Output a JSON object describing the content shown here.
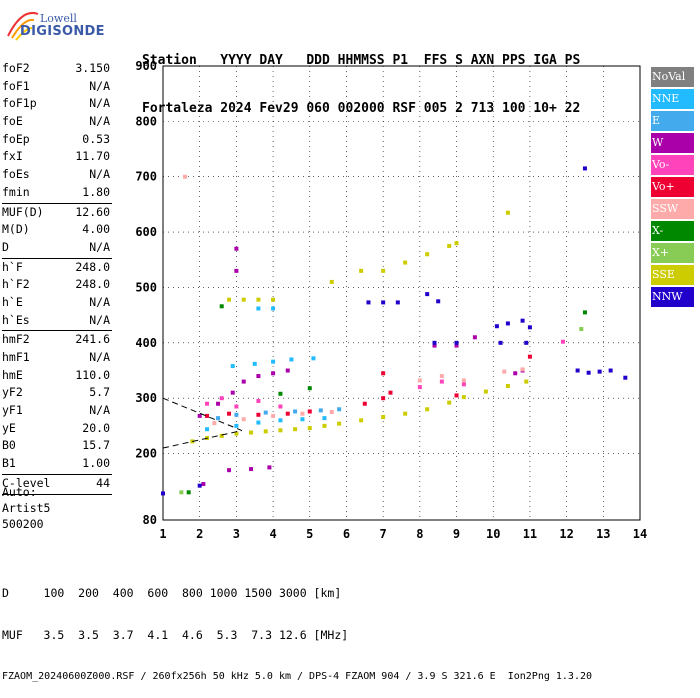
{
  "logo": {
    "top": "Lowell",
    "main": "DIGISONDE"
  },
  "header": {
    "line1": "Station   YYYY DAY   DDD HHMMSS P1  FFS S AXN PPS IGA PS",
    "line2": "Fortaleza 2024 Fev29 060 002000 RSF 005 2 713 100 10+ 22"
  },
  "params": {
    "group1": [
      {
        "k": "foF2",
        "v": "3.150"
      },
      {
        "k": "foF1",
        "v": "N/A"
      },
      {
        "k": "foF1p",
        "v": "N/A"
      },
      {
        "k": "foE",
        "v": "N/A"
      },
      {
        "k": "foEp",
        "v": "0.53"
      },
      {
        "k": "fxI",
        "v": "11.70"
      },
      {
        "k": "foEs",
        "v": "N/A"
      },
      {
        "k": "fmin",
        "v": "1.80"
      }
    ],
    "group2": [
      {
        "k": "MUF(D)",
        "v": "12.60"
      },
      {
        "k": "M(D)",
        "v": "4.00"
      },
      {
        "k": "D",
        "v": "N/A"
      }
    ],
    "group3": [
      {
        "k": "h`F",
        "v": "248.0"
      },
      {
        "k": "h`F2",
        "v": "248.0"
      },
      {
        "k": "h`E",
        "v": "N/A"
      },
      {
        "k": "h`Es",
        "v": "N/A"
      }
    ],
    "group4": [
      {
        "k": "hmF2",
        "v": "241.6"
      },
      {
        "k": "hmF1",
        "v": "N/A"
      },
      {
        "k": "hmE",
        "v": "110.0"
      },
      {
        "k": "yF2",
        "v": "5.7"
      },
      {
        "k": "yF1",
        "v": "N/A"
      },
      {
        "k": "yE",
        "v": "20.0"
      },
      {
        "k": "B0",
        "v": "15.7"
      },
      {
        "k": "B1",
        "v": "1.00"
      }
    ],
    "group5": [
      {
        "k": "C-level",
        "v": "44"
      }
    ]
  },
  "auto": {
    "l1": "Auto:",
    "l2": "Artist5",
    "l3": "500200"
  },
  "bottom": {
    "d_line": "D     100  200  400  600  800 1000 1500 3000 [km]",
    "muf_line": "MUF   3.5  3.5  3.7  4.1  4.6  5.3  7.3 12.6 [MHz]",
    "file_line": "FZAOM_20240600Z000.RSF / 260fx256h 50 kHz 5.0 km / DPS-4 FZAOM 904 / 3.9 S 321.6 E  Ion2Png 1.3.20"
  },
  "legend": [
    {
      "label": "NoVal",
      "color": "#808080"
    },
    {
      "label": "NNE",
      "color": "#22bbff"
    },
    {
      "label": "E",
      "color": "#44aaee"
    },
    {
      "label": "W",
      "color": "#aa00aa"
    },
    {
      "label": "Vo-",
      "color": "#ff44bb"
    },
    {
      "label": "Vo+",
      "color": "#ee0033"
    },
    {
      "label": "SSW",
      "color": "#ffaaaa"
    },
    {
      "label": "X-",
      "color": "#008800"
    },
    {
      "label": "X+",
      "color": "#88cc55"
    },
    {
      "label": "SSE",
      "color": "#cccc00"
    },
    {
      "label": "NNW",
      "color": "#2200cc"
    }
  ],
  "chart_data": {
    "type": "scatter",
    "xlabel": "",
    "ylabel": "",
    "xlim": [
      1,
      14
    ],
    "ylim": [
      80,
      900
    ],
    "x_ticks": [
      1,
      2,
      3,
      4,
      5,
      6,
      7,
      8,
      9,
      10,
      11,
      12,
      13,
      14
    ],
    "y_ticks": [
      80,
      200,
      300,
      400,
      500,
      600,
      700,
      800,
      900
    ],
    "grid": true,
    "legend_placement": "right",
    "series": [
      {
        "name": "SSE",
        "points": [
          [
            1.8,
            222
          ],
          [
            2.2,
            228
          ],
          [
            2.6,
            232
          ],
          [
            3.0,
            236
          ],
          [
            3.4,
            238
          ],
          [
            3.8,
            240
          ],
          [
            4.2,
            242
          ],
          [
            4.6,
            244
          ],
          [
            5.0,
            246
          ],
          [
            5.4,
            250
          ],
          [
            5.8,
            254
          ],
          [
            6.4,
            260
          ],
          [
            7.0,
            266
          ],
          [
            7.6,
            272
          ],
          [
            8.2,
            280
          ],
          [
            8.8,
            292
          ],
          [
            9.2,
            302
          ],
          [
            9.8,
            312
          ],
          [
            10.4,
            322
          ],
          [
            10.9,
            330
          ],
          [
            2.8,
            478
          ],
          [
            3.2,
            478
          ],
          [
            3.6,
            478
          ],
          [
            4.0,
            478
          ],
          [
            5.6,
            510
          ],
          [
            6.4,
            530
          ],
          [
            7.0,
            530
          ],
          [
            7.6,
            545
          ],
          [
            8.2,
            560
          ],
          [
            8.8,
            575
          ],
          [
            9.0,
            580
          ],
          [
            10.4,
            635
          ]
        ]
      },
      {
        "name": "NNE",
        "points": [
          [
            2.2,
            244
          ],
          [
            3.0,
            250
          ],
          [
            3.6,
            256
          ],
          [
            4.2,
            260
          ],
          [
            4.8,
            262
          ],
          [
            5.4,
            264
          ],
          [
            2.9,
            358
          ],
          [
            3.5,
            362
          ],
          [
            4.0,
            366
          ],
          [
            4.5,
            370
          ],
          [
            5.1,
            372
          ],
          [
            4.0,
            462
          ],
          [
            3.6,
            462
          ]
        ]
      },
      {
        "name": "E",
        "points": [
          [
            2.5,
            264
          ],
          [
            3.0,
            270
          ],
          [
            3.8,
            274
          ],
          [
            4.6,
            276
          ],
          [
            5.3,
            278
          ],
          [
            5.8,
            280
          ]
        ]
      },
      {
        "name": "W",
        "points": [
          [
            2.0,
            268
          ],
          [
            2.5,
            290
          ],
          [
            2.9,
            310
          ],
          [
            3.2,
            330
          ],
          [
            3.6,
            340
          ],
          [
            4.0,
            345
          ],
          [
            4.4,
            350
          ],
          [
            2.8,
            170
          ],
          [
            3.4,
            172
          ],
          [
            3.9,
            175
          ],
          [
            2.1,
            145
          ],
          [
            3.0,
            530
          ],
          [
            3.0,
            570
          ],
          [
            8.4,
            395
          ],
          [
            9.0,
            395
          ],
          [
            9.5,
            410
          ],
          [
            10.6,
            345
          ],
          [
            10.8,
            350
          ]
        ]
      },
      {
        "name": "Vo-",
        "points": [
          [
            2.2,
            290
          ],
          [
            2.6,
            300
          ],
          [
            3.0,
            285
          ],
          [
            3.6,
            295
          ],
          [
            4.2,
            285
          ],
          [
            8.0,
            320
          ],
          [
            8.6,
            330
          ],
          [
            9.2,
            325
          ],
          [
            11.9,
            402
          ]
        ]
      },
      {
        "name": "Vo+",
        "points": [
          [
            2.2,
            268
          ],
          [
            2.8,
            272
          ],
          [
            3.6,
            270
          ],
          [
            4.4,
            272
          ],
          [
            5.0,
            276
          ],
          [
            6.5,
            290
          ],
          [
            7.0,
            300
          ],
          [
            7.2,
            310
          ],
          [
            7.0,
            345
          ],
          [
            9.0,
            305
          ],
          [
            11.0,
            375
          ]
        ]
      },
      {
        "name": "SSW",
        "points": [
          [
            2.4,
            255
          ],
          [
            3.2,
            262
          ],
          [
            4.0,
            268
          ],
          [
            4.8,
            272
          ],
          [
            5.6,
            275
          ],
          [
            8.0,
            332
          ],
          [
            8.6,
            340
          ],
          [
            9.2,
            332
          ],
          [
            1.6,
            700
          ],
          [
            10.3,
            348
          ],
          [
            10.8,
            352
          ]
        ]
      },
      {
        "name": "X-",
        "points": [
          [
            1.7,
            130
          ],
          [
            4.2,
            308
          ],
          [
            5.0,
            318
          ],
          [
            12.5,
            455
          ],
          [
            2.6,
            466
          ]
        ]
      },
      {
        "name": "X+",
        "points": [
          [
            1.5,
            130
          ],
          [
            12.4,
            425
          ]
        ]
      },
      {
        "name": "NNW",
        "points": [
          [
            1.0,
            128
          ],
          [
            2.0,
            142
          ],
          [
            6.6,
            473
          ],
          [
            7.0,
            473
          ],
          [
            7.4,
            473
          ],
          [
            8.2,
            488
          ],
          [
            8.5,
            475
          ],
          [
            8.4,
            400
          ],
          [
            9.0,
            400
          ],
          [
            10.1,
            430
          ],
          [
            10.4,
            435
          ],
          [
            10.8,
            440
          ],
          [
            11.0,
            428
          ],
          [
            10.2,
            400
          ],
          [
            10.9,
            400
          ],
          [
            12.5,
            715
          ],
          [
            12.3,
            350
          ],
          [
            12.6,
            346
          ],
          [
            12.9,
            348
          ],
          [
            13.2,
            350
          ],
          [
            13.6,
            337
          ]
        ]
      }
    ]
  }
}
